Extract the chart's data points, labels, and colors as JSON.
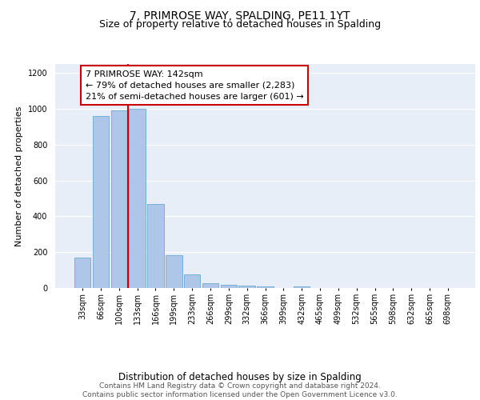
{
  "title": "7, PRIMROSE WAY, SPALDING, PE11 1YT",
  "subtitle": "Size of property relative to detached houses in Spalding",
  "xlabel": "Distribution of detached houses by size in Spalding",
  "ylabel": "Number of detached properties",
  "categories": [
    "33sqm",
    "66sqm",
    "100sqm",
    "133sqm",
    "166sqm",
    "199sqm",
    "233sqm",
    "266sqm",
    "299sqm",
    "332sqm",
    "366sqm",
    "399sqm",
    "432sqm",
    "465sqm",
    "499sqm",
    "532sqm",
    "565sqm",
    "598sqm",
    "632sqm",
    "665sqm",
    "698sqm"
  ],
  "values": [
    170,
    960,
    990,
    1000,
    470,
    185,
    75,
    25,
    20,
    15,
    10,
    0,
    10,
    0,
    0,
    0,
    0,
    0,
    0,
    0,
    0
  ],
  "bar_color": "#aec6e8",
  "bar_edge_color": "#6aaad4",
  "red_line_x": 2.5,
  "annotation_text": "7 PRIMROSE WAY: 142sqm\n← 79% of detached houses are smaller (2,283)\n21% of semi-detached houses are larger (601) →",
  "annotation_box_color": "white",
  "annotation_box_edge_color": "#cc0000",
  "ylim": [
    0,
    1250
  ],
  "yticks": [
    0,
    200,
    400,
    600,
    800,
    1000,
    1200
  ],
  "bg_color": "#e8eef8",
  "grid_color": "#ffffff",
  "footer_text": "Contains HM Land Registry data © Crown copyright and database right 2024.\nContains public sector information licensed under the Open Government Licence v3.0.",
  "title_fontsize": 10,
  "subtitle_fontsize": 9,
  "xlabel_fontsize": 8.5,
  "ylabel_fontsize": 8,
  "tick_fontsize": 7,
  "annotation_fontsize": 8,
  "footer_fontsize": 6.5
}
